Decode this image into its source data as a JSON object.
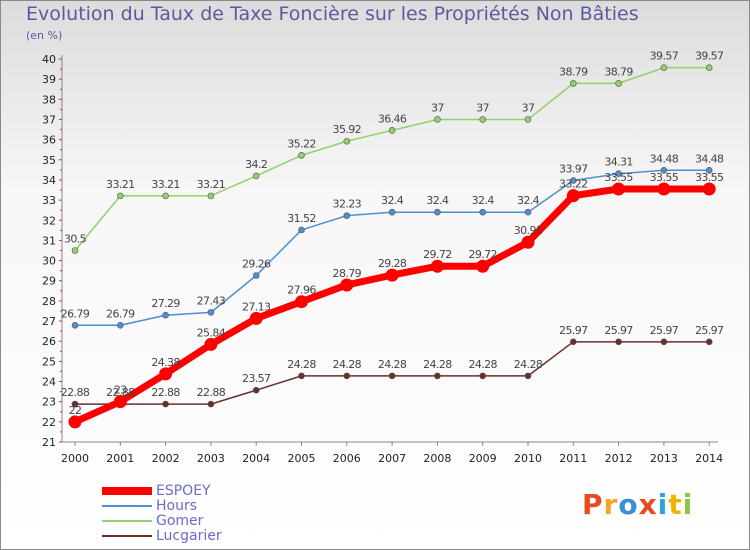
{
  "chart_data": {
    "type": "line",
    "title": "Evolution du Taux de Taxe Foncière sur les Propriétés Non Bâties",
    "unit_label": "(en %)",
    "x": [
      "2000",
      "2001",
      "2002",
      "2003",
      "2004",
      "2005",
      "2006",
      "2007",
      "2008",
      "2009",
      "2010",
      "2011",
      "2012",
      "2013",
      "2014"
    ],
    "ylim": [
      21,
      40
    ],
    "yticks": [
      21,
      22,
      23,
      24,
      25,
      26,
      27,
      28,
      29,
      30,
      31,
      32,
      33,
      34,
      35,
      36,
      37,
      38,
      39,
      40
    ],
    "grid": false,
    "legend_position": "bottom-left",
    "series": [
      {
        "name": "ESPOEY",
        "color": "#ff0000",
        "values": [
          22,
          23,
          24.38,
          25.84,
          27.13,
          27.96,
          28.79,
          29.28,
          29.72,
          29.72,
          30.91,
          33.22,
          33.55,
          33.55,
          33.55
        ],
        "labels": [
          "22",
          "23",
          "24.38",
          "25.84",
          "27.13",
          "27.96",
          "28.79",
          "29.28",
          "29.72",
          "29.72",
          "30.91",
          "33.22",
          "33.55",
          "33.55",
          "33.55"
        ]
      },
      {
        "name": "Hours",
        "color": "#4f8fcf",
        "values": [
          26.79,
          26.79,
          27.29,
          27.43,
          29.26,
          31.52,
          32.23,
          32.4,
          32.4,
          32.4,
          32.4,
          33.97,
          34.31,
          34.48,
          34.48
        ],
        "labels": [
          "26.79",
          "26.79",
          "27.29",
          "27.43",
          "29.26",
          "31.52",
          "32.23",
          "32.4",
          "32.4",
          "32.4",
          "32.4",
          "33.97",
          "34.31",
          "34.48",
          "34.48"
        ]
      },
      {
        "name": "Gomer",
        "color": "#8fd16a",
        "values": [
          30.5,
          33.21,
          33.21,
          33.21,
          34.2,
          35.22,
          35.92,
          36.46,
          37,
          37,
          37,
          38.79,
          38.79,
          39.57,
          39.57
        ],
        "labels": [
          "30.5",
          "33.21",
          "33.21",
          "33.21",
          "34.2",
          "35.22",
          "35.92",
          "36.46",
          "37",
          "37",
          "37",
          "38.79",
          "38.79",
          "39.57",
          "39.57"
        ]
      },
      {
        "name": "Lucgarier",
        "color": "#6b2e2e",
        "values": [
          22.88,
          22.88,
          22.88,
          22.88,
          23.57,
          24.28,
          24.28,
          24.28,
          24.28,
          24.28,
          24.28,
          25.97,
          25.97,
          25.97,
          25.97
        ],
        "labels": [
          "22.88",
          "22.88",
          "22.88",
          "22.88",
          "23.57",
          "24.28",
          "24.28",
          "24.28",
          "24.28",
          "24.28",
          "24.28",
          "25.97",
          "25.97",
          "25.97",
          "25.97"
        ]
      }
    ]
  },
  "logo": {
    "text": "Proxiti",
    "colors": [
      "#e8491d",
      "#f5a623",
      "#3b8dd9",
      "#e8491d",
      "#2aa7d8",
      "#f0b400",
      "#8cc63f"
    ]
  }
}
